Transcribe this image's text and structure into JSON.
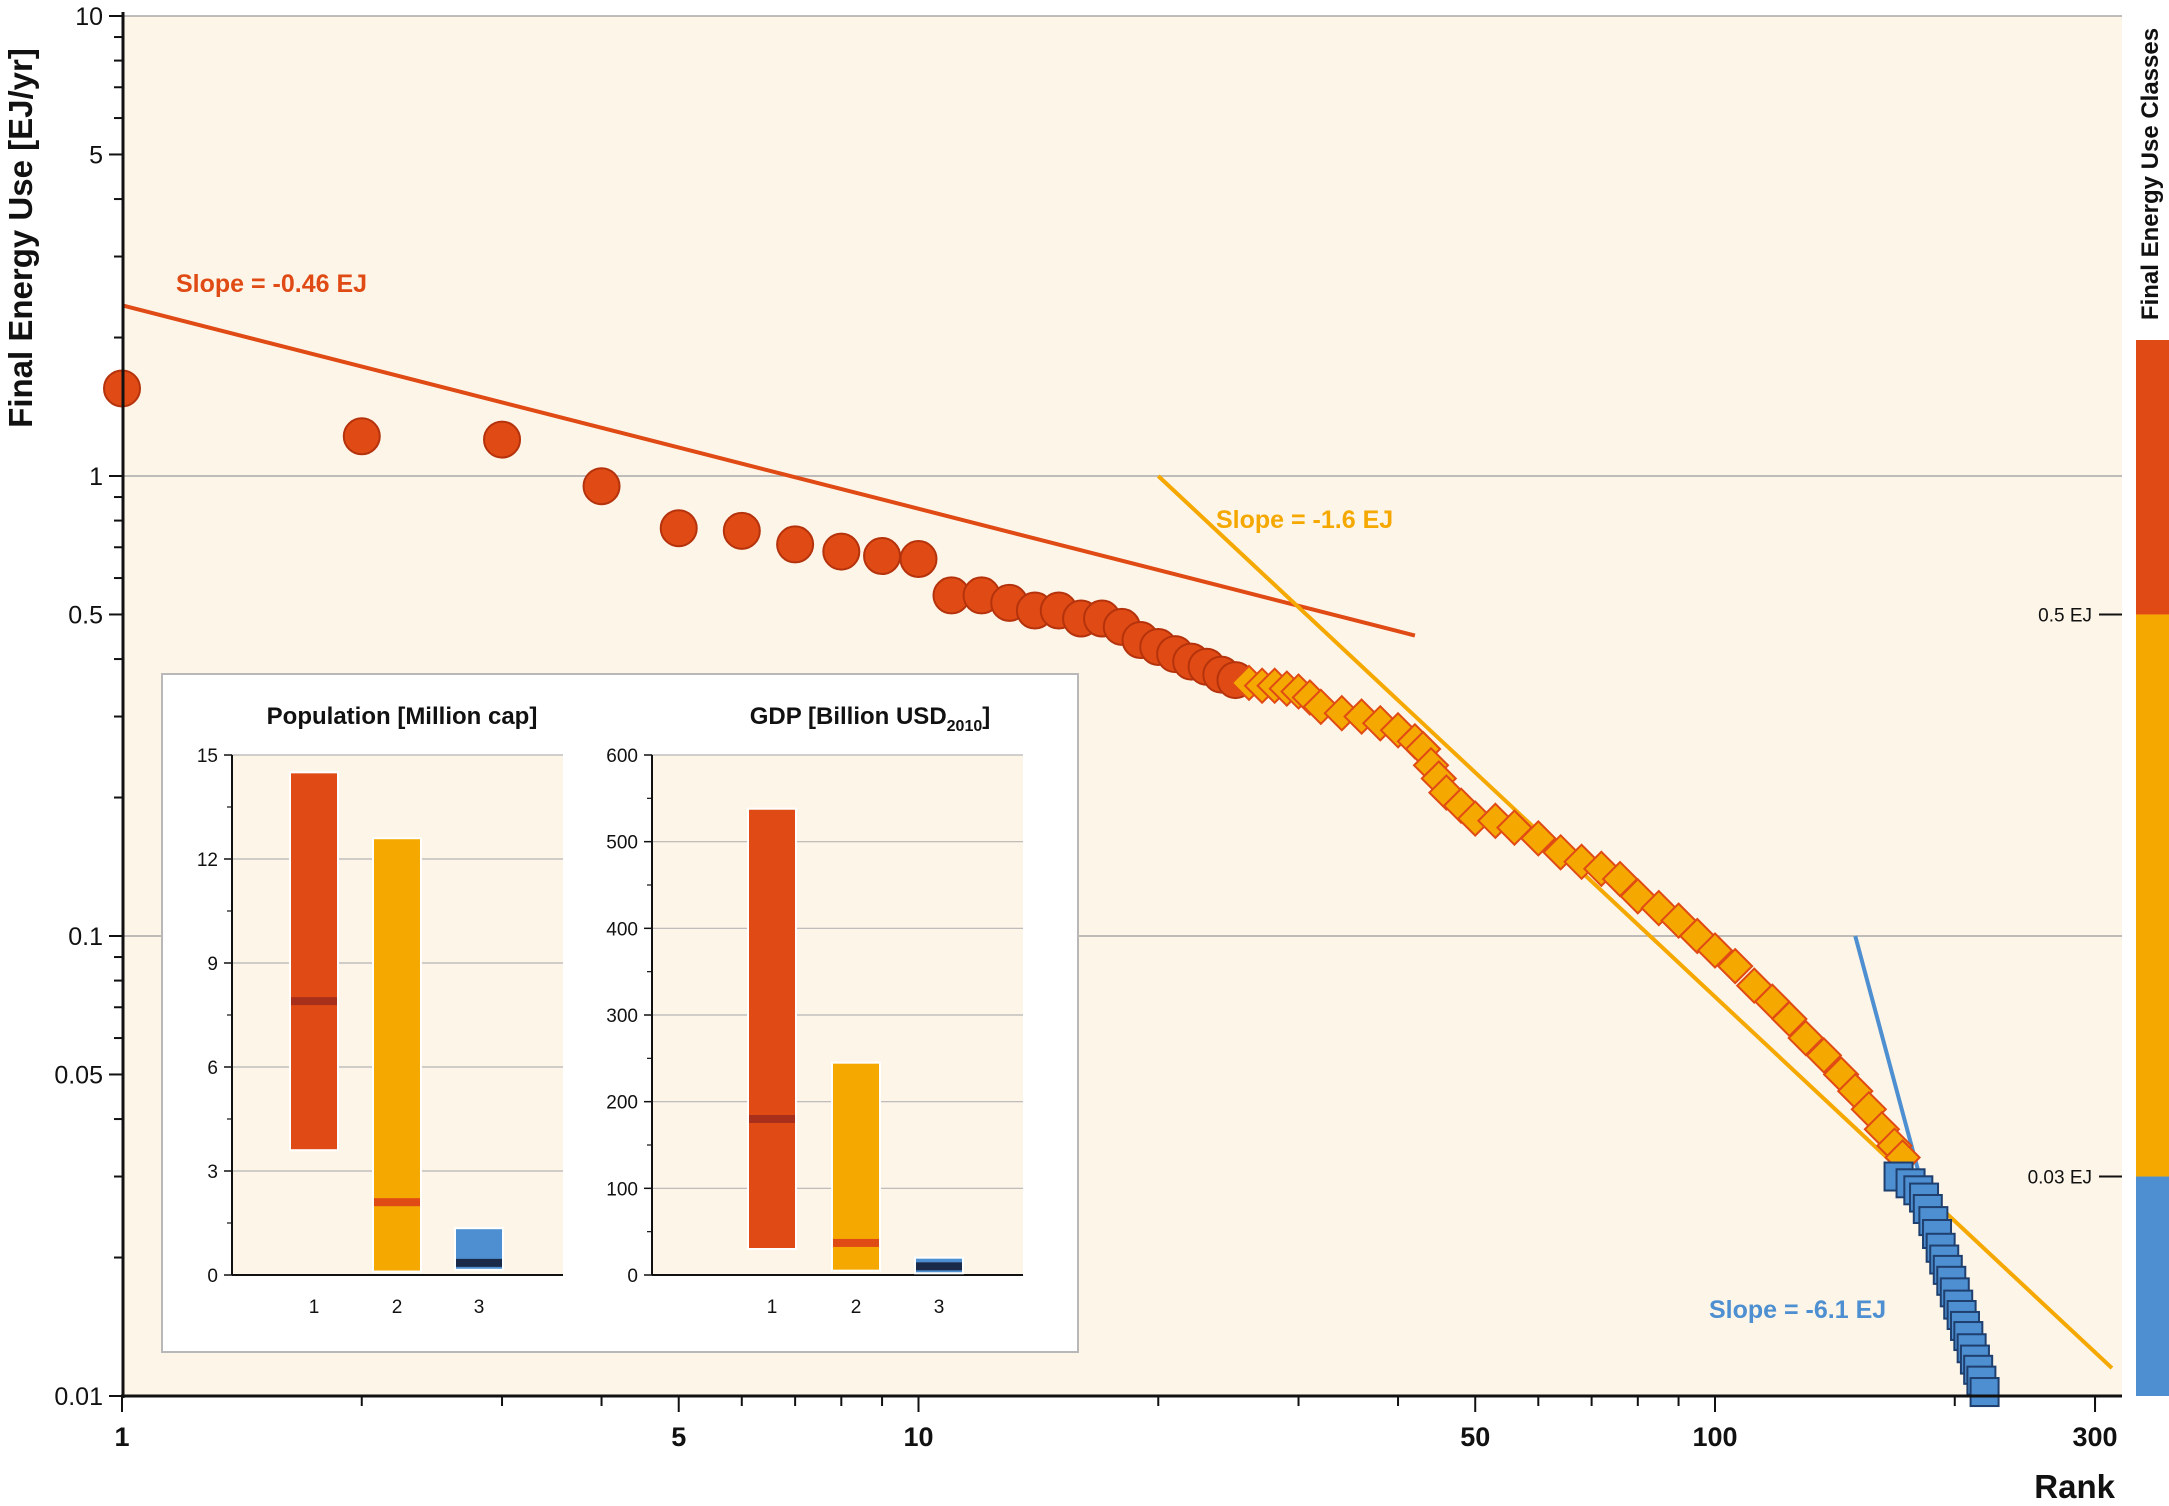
{
  "chart_data": {
    "type": "scatter",
    "x_axis": {
      "label": "Rank",
      "scale": "log",
      "range": [
        1,
        330
      ],
      "ticks": [
        1,
        5,
        10,
        50,
        100,
        300
      ],
      "tick_labels": [
        "1",
        "5",
        "10",
        "50",
        "100",
        "300"
      ]
    },
    "y_axis": {
      "label": "Final Energy Use [EJ/yr]",
      "scale": "log",
      "range": [
        0.01,
        10
      ],
      "ticks": [
        0.01,
        0.05,
        0.1,
        0.5,
        1,
        5,
        10
      ],
      "tick_labels": [
        "0.01",
        "0.05",
        "0.1",
        "0.5",
        "1",
        "5",
        "10"
      ]
    },
    "grid": "horizontal",
    "background": "#fdf5e8",
    "series": [
      {
        "class": 1,
        "marker": "circle",
        "color": "#e04a14",
        "points": [
          [
            1,
            1.55
          ],
          [
            2,
            1.22
          ],
          [
            3,
            1.2
          ],
          [
            4,
            0.95
          ],
          [
            5,
            0.77
          ],
          [
            6,
            0.76
          ],
          [
            7,
            0.71
          ],
          [
            8,
            0.685
          ],
          [
            9,
            0.67
          ],
          [
            10,
            0.66
          ],
          [
            11,
            0.55
          ],
          [
            12,
            0.55
          ],
          [
            13,
            0.53
          ],
          [
            14,
            0.51
          ],
          [
            15,
            0.51
          ],
          [
            16,
            0.49
          ],
          [
            17,
            0.49
          ],
          [
            18,
            0.47
          ],
          [
            19,
            0.44
          ],
          [
            20,
            0.425
          ],
          [
            21,
            0.41
          ],
          [
            22,
            0.395
          ],
          [
            23,
            0.385
          ],
          [
            24,
            0.37
          ],
          [
            25,
            0.36
          ]
        ]
      },
      {
        "class": 2,
        "marker": "diamond",
        "color": "#f5a800",
        "points": [
          [
            26,
            0.355
          ],
          [
            27,
            0.35
          ],
          [
            28,
            0.35
          ],
          [
            29,
            0.345
          ],
          [
            30,
            0.34
          ],
          [
            31,
            0.33
          ],
          [
            32,
            0.315
          ],
          [
            34,
            0.305
          ],
          [
            36,
            0.3
          ],
          [
            38,
            0.29
          ],
          [
            40,
            0.28
          ],
          [
            42,
            0.265
          ],
          [
            43,
            0.255
          ],
          [
            44,
            0.235
          ],
          [
            45,
            0.22
          ],
          [
            46,
            0.205
          ],
          [
            48,
            0.192
          ],
          [
            50,
            0.18
          ],
          [
            53,
            0.178
          ],
          [
            56,
            0.172
          ],
          [
            60,
            0.163
          ],
          [
            64,
            0.152
          ],
          [
            68,
            0.145
          ],
          [
            72,
            0.14
          ],
          [
            76,
            0.133
          ],
          [
            80,
            0.122
          ],
          [
            85,
            0.115
          ],
          [
            90,
            0.108
          ],
          [
            95,
            0.1
          ],
          [
            100,
            0.093
          ],
          [
            106,
            0.086
          ],
          [
            112,
            0.078
          ],
          [
            118,
            0.072
          ],
          [
            124,
            0.066
          ],
          [
            130,
            0.06
          ],
          [
            137,
            0.055
          ],
          [
            144,
            0.05
          ],
          [
            150,
            0.046
          ],
          [
            156,
            0.042
          ],
          [
            162,
            0.038
          ],
          [
            168,
            0.035
          ],
          [
            172,
            0.033
          ]
        ]
      },
      {
        "class": 3,
        "marker": "square",
        "color": "#4d8fd0",
        "points": [
          [
            170,
            0.03
          ],
          [
            176,
            0.029
          ],
          [
            180,
            0.028
          ],
          [
            183,
            0.027
          ],
          [
            185,
            0.0255
          ],
          [
            188,
            0.024
          ],
          [
            190,
            0.0225
          ],
          [
            192,
            0.021
          ],
          [
            194,
            0.0198
          ],
          [
            196,
            0.0188
          ],
          [
            198,
            0.0178
          ],
          [
            200,
            0.0168
          ],
          [
            202,
            0.0158
          ],
          [
            204,
            0.015
          ],
          [
            206,
            0.0142
          ],
          [
            208,
            0.0135
          ],
          [
            210,
            0.0127
          ],
          [
            212,
            0.012
          ],
          [
            214,
            0.0114
          ],
          [
            216,
            0.0108
          ],
          [
            218,
            0.0102
          ]
        ]
      }
    ],
    "fit_lines": [
      {
        "label": "Slope = -0.46 EJ",
        "color": "#e04a14",
        "from": [
          1,
          2.35
        ],
        "to": [
          42,
          0.45
        ]
      },
      {
        "label": "Slope = -1.6 EJ",
        "color": "#f5a800",
        "from": [
          20,
          1.0
        ],
        "to": [
          315,
          0.0115
        ]
      },
      {
        "label": "Slope = -6.1 EJ",
        "color": "#4d8fd0",
        "from": [
          150,
          0.1
        ],
        "to": [
          216,
          0.0095
        ]
      }
    ],
    "legend": {
      "title": "Final Energy Use Classes",
      "position": "right",
      "classes": [
        {
          "color": "#e04a14",
          "from": 0.5,
          "to": 10
        },
        {
          "color": "#f5a800",
          "from": 0.03,
          "to": 0.5
        },
        {
          "color": "#4d8fd0",
          "from": 0.01,
          "to": 0.03
        }
      ],
      "thresholds": [
        {
          "value": 0.5,
          "label": "0.5 EJ"
        },
        {
          "value": 0.03,
          "label": "0.03 EJ"
        }
      ]
    },
    "insets": [
      {
        "type": "bar",
        "title": "Population [Million cap]",
        "categories": [
          "1",
          "2",
          "3"
        ],
        "ylim": [
          0,
          15
        ],
        "yticks": [
          "0",
          "3",
          "6",
          "9",
          "12",
          "15"
        ],
        "ranges": [
          [
            3.6,
            14.5
          ],
          [
            0.1,
            12.6
          ],
          [
            0.15,
            1.35
          ]
        ],
        "medians": [
          7.9,
          2.1,
          0.35
        ],
        "colors": [
          "#e04a14",
          "#f5a800",
          "#4d8fd0"
        ],
        "median_colors": [
          "#a8301a",
          "#e04a14",
          "#1c2a4a"
        ]
      },
      {
        "type": "bar",
        "title": "GDP [Billion USD",
        "title_sub": "2010",
        "title_end": "]",
        "categories": [
          "1",
          "2",
          "3"
        ],
        "ylim": [
          0,
          600
        ],
        "yticks": [
          "0",
          "100",
          "200",
          "300",
          "400",
          "500",
          "600"
        ],
        "ranges": [
          [
            30,
            538
          ],
          [
            5,
            245
          ],
          [
            2,
            20
          ]
        ],
        "medians": [
          180,
          37,
          10
        ],
        "colors": [
          "#e04a14",
          "#f5a800",
          "#4d8fd0"
        ],
        "median_colors": [
          "#a8301a",
          "#e04a14",
          "#1c2a4a"
        ]
      }
    ]
  }
}
